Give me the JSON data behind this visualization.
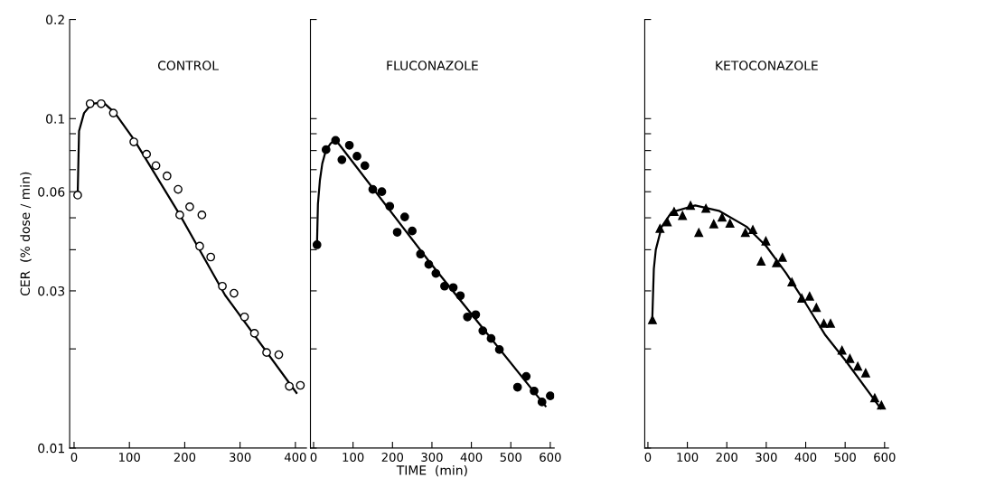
{
  "chart_data": [
    {
      "type": "scatter",
      "title": "CONTROL",
      "ylabel": "CER  (% dose / min)",
      "log": "y",
      "grid": false,
      "legend": false,
      "tick_labels": "xy",
      "xlim": [
        -8,
        420
      ],
      "xticks": [
        0,
        100,
        200,
        300,
        400
      ],
      "ylim": [
        0.01,
        0.2
      ],
      "yticks": [
        0.01,
        {
          "value": 0.02,
          "label": null
        },
        0.03,
        {
          "value": 0.04,
          "label": null
        },
        {
          "value": 0.05,
          "label": null
        },
        0.06,
        {
          "value": 0.07,
          "label": null
        },
        {
          "value": 0.08,
          "label": null
        },
        {
          "value": 0.09,
          "label": null
        },
        0.1,
        0.2
      ],
      "series": [
        {
          "marker": "circle",
          "color": "#ffffff",
          "x": [
            6.5,
            29,
            49,
            71,
            108,
            131,
            148,
            168,
            188,
            191,
            209,
            227,
            231,
            247,
            268,
            289,
            308,
            326,
            348,
            370,
            389,
            409
          ],
          "values": [
            0.0586,
            0.111,
            0.111,
            0.104,
            0.085,
            0.078,
            0.072,
            0.067,
            0.061,
            0.051,
            0.054,
            0.041,
            0.051,
            0.038,
            0.031,
            0.0295,
            0.025,
            0.0223,
            0.0195,
            0.0192,
            0.0154,
            0.0155
          ]
        },
        {
          "type": "line",
          "marker": "none",
          "line_style": "solid",
          "color": "#000000",
          "x": [
            6.5,
            9,
            18,
            32,
            53,
            74,
            109,
            191,
            273,
            402
          ],
          "values": [
            0.0586,
            0.0917,
            0.104,
            0.111,
            0.112,
            0.104,
            0.086,
            0.0511,
            0.0291,
            0.0147
          ]
        }
      ]
    },
    {
      "type": "scatter",
      "title": "FLUCONAZOLE",
      "xlabel": "TIME  (min)",
      "log": "y",
      "grid": false,
      "legend": false,
      "tick_labels": "x",
      "xlim": [
        -8,
        610
      ],
      "xticks": [
        0,
        100,
        200,
        300,
        400,
        500,
        600
      ],
      "ylim": [
        0.01,
        0.2
      ],
      "yticks": [
        0.01,
        {
          "value": 0.02,
          "label": null
        },
        0.03,
        {
          "value": 0.04,
          "label": null
        },
        {
          "value": 0.05,
          "label": null
        },
        0.06,
        {
          "value": 0.07,
          "label": null
        },
        {
          "value": 0.08,
          "label": null
        },
        {
          "value": 0.09,
          "label": null
        },
        0.1,
        0.2
      ],
      "series": [
        {
          "marker": "circle",
          "color": "#000000",
          "x": [
            8.6,
            31.6,
            55.7,
            71.7,
            90.7,
            110,
            130,
            150,
            173,
            193,
            212,
            231,
            250,
            271,
            292,
            310,
            332,
            354,
            372,
            390,
            411,
            429,
            450,
            471,
            517,
            539,
            559,
            579,
            600
          ],
          "values": [
            0.0414,
            0.0805,
            0.0859,
            0.075,
            0.083,
            0.0769,
            0.072,
            0.061,
            0.06,
            0.0542,
            0.0452,
            0.0503,
            0.0456,
            0.0388,
            0.0361,
            0.0339,
            0.031,
            0.0307,
            0.029,
            0.025,
            0.0254,
            0.0227,
            0.0215,
            0.0199,
            0.0153,
            0.0165,
            0.0149,
            0.0138,
            0.0144
          ]
        },
        {
          "type": "line",
          "marker": "none",
          "line_style": "solid",
          "color": "#000000",
          "x": [
            8.6,
            11,
            16,
            22,
            31,
            43,
            55,
            294,
            588
          ],
          "values": [
            0.0414,
            0.055,
            0.065,
            0.073,
            0.08,
            0.084,
            0.0865,
            0.0367,
            0.0134
          ]
        }
      ]
    },
    {
      "type": "scatter",
      "title": "KETOCONAZOLE",
      "log": "y",
      "grid": false,
      "legend": false,
      "tick_labels": "x",
      "xlim": [
        -8,
        610
      ],
      "xticks": [
        0,
        100,
        200,
        300,
        400,
        500,
        600
      ],
      "ylim": [
        0.01,
        0.2
      ],
      "yticks": [
        0.01,
        {
          "value": 0.02,
          "label": null
        },
        0.03,
        {
          "value": 0.04,
          "label": null
        },
        {
          "value": 0.05,
          "label": null
        },
        0.06,
        {
          "value": 0.07,
          "label": null
        },
        {
          "value": 0.08,
          "label": null
        },
        {
          "value": 0.09,
          "label": null
        },
        0.1,
        0.2
      ],
      "series": [
        {
          "marker": "triangle",
          "color": "#000000",
          "x": [
            11.5,
            30.6,
            49,
            66.4,
            87.7,
            108,
            129,
            147,
            167,
            188,
            208,
            247,
            266,
            287,
            299,
            326,
            341,
            365,
            390,
            410,
            427,
            446,
            463,
            492,
            512,
            532,
            552,
            575,
            592
          ],
          "values": [
            0.0245,
            0.0464,
            0.0486,
            0.0522,
            0.0508,
            0.0545,
            0.0451,
            0.0534,
            0.0479,
            0.0502,
            0.0481,
            0.0451,
            0.046,
            0.0369,
            0.0425,
            0.0365,
            0.0379,
            0.0319,
            0.0285,
            0.0289,
            0.0267,
            0.0239,
            0.0239,
            0.0198,
            0.0187,
            0.0177,
            0.0169,
            0.0142,
            0.0135
          ]
        },
        {
          "type": "line",
          "marker": "none",
          "line_style": "solid",
          "color": "#000000",
          "x": [
            11,
            15,
            20,
            35,
            60,
            120,
            180,
            250,
            300,
            350,
            400,
            450,
            500,
            590
          ],
          "values": [
            0.0245,
            0.035,
            0.04,
            0.047,
            0.052,
            0.0545,
            0.0525,
            0.047,
            0.041,
            0.034,
            0.0275,
            0.022,
            0.0185,
            0.0132
          ]
        }
      ]
    }
  ]
}
